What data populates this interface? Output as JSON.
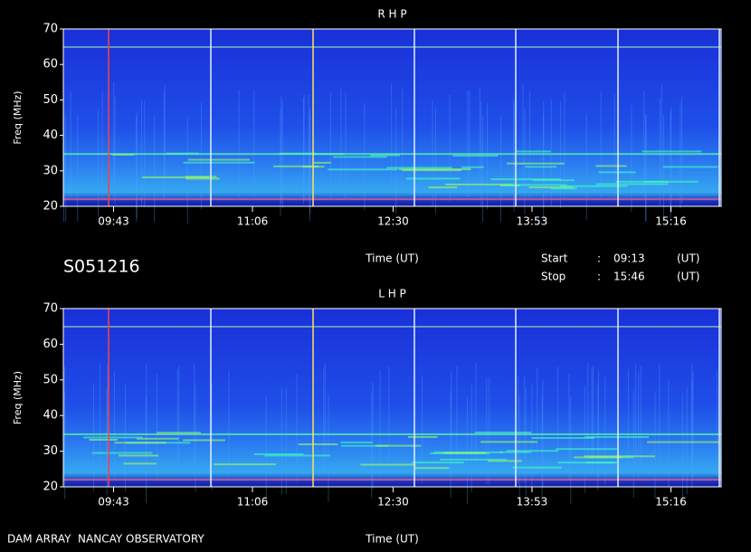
{
  "chart_data": [
    {
      "type": "spectrogram",
      "title": "R H P",
      "y_label": "Freq (MHz)",
      "x_label": "Time (UT)",
      "ylim": [
        20,
        70
      ],
      "yticks": [
        20,
        30,
        40,
        50,
        60,
        70
      ],
      "xlim": [
        553,
        946
      ],
      "xticks": [
        {
          "value": 583,
          "label": "09:43"
        },
        {
          "value": 666,
          "label": "11:06"
        },
        {
          "value": 750,
          "label": "12:30"
        },
        {
          "value": 833,
          "label": "13:53"
        },
        {
          "value": 916,
          "label": "15:16"
        }
      ]
    },
    {
      "type": "spectrogram",
      "title": "L H P",
      "y_label": "Freq (MHz)",
      "x_label": "Time (UT)",
      "ylim": [
        20,
        70
      ],
      "yticks": [
        20,
        30,
        40,
        50,
        60,
        70
      ],
      "xlim": [
        553,
        946
      ],
      "xticks": [
        {
          "value": 583,
          "label": "09:43"
        },
        {
          "value": 666,
          "label": "11:06"
        },
        {
          "value": 750,
          "label": "12:30"
        },
        {
          "value": 833,
          "label": "13:53"
        },
        {
          "value": 916,
          "label": "15:16"
        }
      ]
    }
  ],
  "info": {
    "id": "S051216",
    "start_label": "Start",
    "stop_label": "Stop",
    "separator": ":",
    "start": "09:13",
    "stop": "15:46",
    "unit": "(UT)",
    "footer": "DAM ARRAY  NANCAY OBSERVATORY"
  }
}
